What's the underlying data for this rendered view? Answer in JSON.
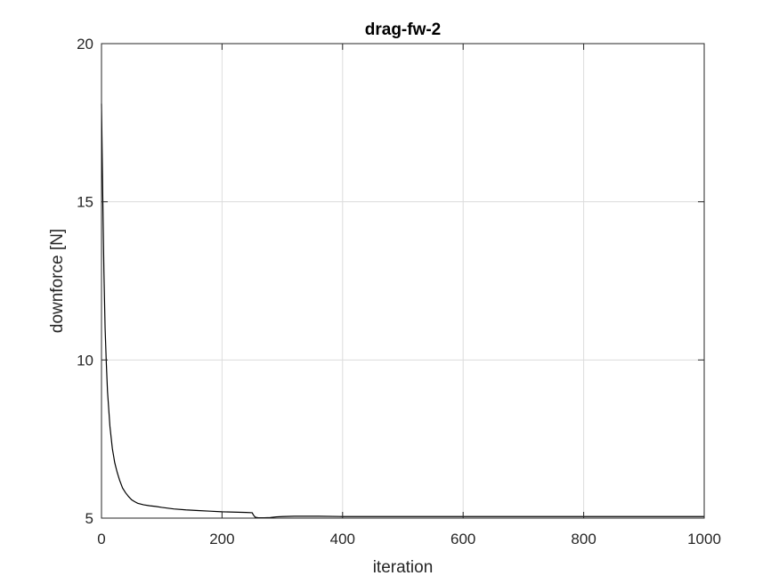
{
  "chart_data": {
    "type": "line",
    "title": "drag-fw-2",
    "xlabel": "iteration",
    "ylabel": "downforce [N]",
    "xlim": [
      0,
      1000
    ],
    "ylim": [
      5,
      20
    ],
    "xticks": [
      0,
      200,
      400,
      600,
      800,
      1000
    ],
    "yticks": [
      5,
      10,
      15,
      20
    ],
    "xtick_labels": [
      "0",
      "200",
      "400",
      "600",
      "800",
      "1000"
    ],
    "ytick_labels": [
      "5",
      "10",
      "15",
      "20"
    ],
    "grid": true,
    "series": [
      {
        "color": "#000000",
        "x": [
          0,
          2,
          4,
          6,
          8,
          10,
          14,
          18,
          22,
          26,
          30,
          35,
          40,
          45,
          50,
          55,
          60,
          70,
          80,
          90,
          100,
          120,
          140,
          160,
          180,
          200,
          220,
          240,
          250,
          252,
          255,
          260,
          270,
          280,
          290,
          300,
          320,
          340,
          360,
          400,
          500,
          600,
          700,
          800,
          900,
          1000
        ],
        "y": [
          18.1,
          15.3,
          12.8,
          11.0,
          9.9,
          9.0,
          7.9,
          7.2,
          6.75,
          6.45,
          6.2,
          5.95,
          5.8,
          5.68,
          5.58,
          5.52,
          5.47,
          5.42,
          5.39,
          5.37,
          5.34,
          5.29,
          5.26,
          5.24,
          5.22,
          5.2,
          5.19,
          5.18,
          5.17,
          5.1,
          5.03,
          5.01,
          5.01,
          5.02,
          5.04,
          5.05,
          5.06,
          5.06,
          5.06,
          5.05,
          5.05,
          5.05,
          5.05,
          5.05,
          5.05,
          5.05
        ]
      }
    ]
  }
}
